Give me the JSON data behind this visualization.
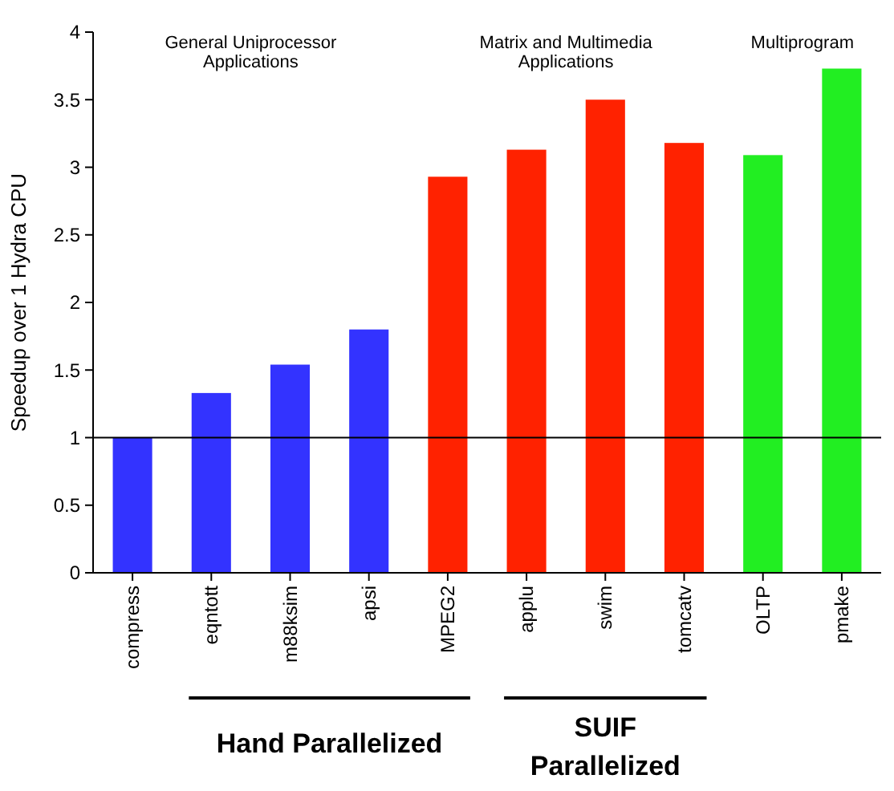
{
  "chart_data": {
    "type": "bar",
    "ylabel": "Speedup over 1 Hydra CPU",
    "categories": [
      "compress",
      "eqntott",
      "m88ksim",
      "apsi",
      "MPEG2",
      "applu",
      "swim",
      "tomcatv",
      "OLTP",
      "pmake"
    ],
    "values": [
      1.0,
      1.33,
      1.54,
      1.8,
      2.93,
      3.13,
      3.5,
      3.18,
      3.09,
      3.73
    ],
    "colors": [
      "#3333ff",
      "#3333ff",
      "#3333ff",
      "#3333ff",
      "#ff2200",
      "#ff2200",
      "#ff2200",
      "#ff2200",
      "#22ee22",
      "#22ee22"
    ],
    "ylim": [
      0,
      4
    ],
    "yticks": [
      0,
      0.5,
      1,
      1.5,
      2,
      2.5,
      3,
      3.5,
      4
    ],
    "ref_lines": [
      {
        "axis": "y",
        "value": 1,
        "color": "#000000"
      }
    ],
    "annotations": [
      "General Uniprocessor\nApplications",
      "Matrix and Multimedia\nApplications",
      "Multiprogram",
      "Hand Parallelized",
      "SUIF\nParallelized"
    ],
    "grid": false
  }
}
